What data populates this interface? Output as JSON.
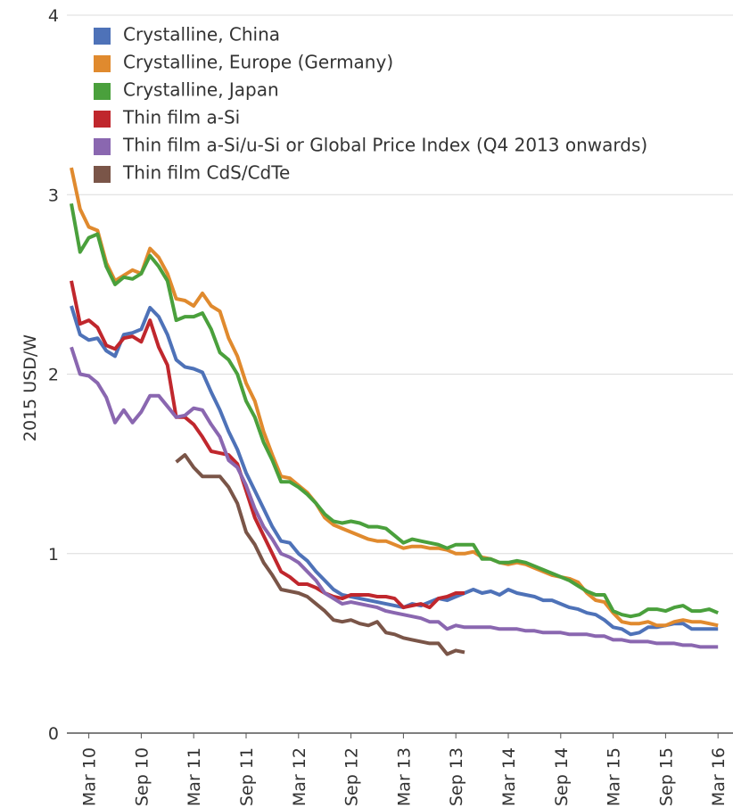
{
  "chart_data": {
    "type": "line",
    "ylabel": "2015 USD/W",
    "ylim": [
      0,
      4
    ],
    "yticks": [
      0,
      1,
      2,
      3,
      4
    ],
    "grid": true,
    "legend": "top-left",
    "categories": [
      null,
      null,
      "Mar 10",
      null,
      null,
      null,
      null,
      null,
      "Sep 10",
      null,
      null,
      null,
      null,
      null,
      "Mar 11",
      null,
      null,
      null,
      null,
      null,
      "Sep 11",
      null,
      null,
      null,
      null,
      null,
      "Mar 12",
      null,
      null,
      null,
      null,
      null,
      "Sep 12",
      null,
      null,
      null,
      null,
      null,
      "Mar 13",
      null,
      null,
      null,
      null,
      null,
      "Sep 13",
      null,
      null,
      null,
      null,
      null,
      "Mar 14",
      null,
      null,
      null,
      null,
      null,
      "Sep 14",
      null,
      null,
      null,
      null,
      null,
      "Mar 15",
      null,
      null,
      null,
      null,
      null,
      "Sep 15",
      null,
      null,
      null,
      null,
      null,
      "Mar 16"
    ],
    "series": [
      {
        "name": "Crystalline, China",
        "color": "#4e72b8",
        "values": [
          2.38,
          2.22,
          2.19,
          2.2,
          2.13,
          2.1,
          2.22,
          2.23,
          2.25,
          2.37,
          2.32,
          2.22,
          2.08,
          2.04,
          2.03,
          2.01,
          1.9,
          1.8,
          1.68,
          1.58,
          1.45,
          1.35,
          1.25,
          1.15,
          1.07,
          1.06,
          1.0,
          0.96,
          0.9,
          0.85,
          0.8,
          0.77,
          0.76,
          0.75,
          0.74,
          0.73,
          0.72,
          0.71,
          0.7,
          0.72,
          0.71,
          0.73,
          0.75,
          0.74,
          0.76,
          0.78,
          0.8,
          0.78,
          0.79,
          0.77,
          0.8,
          0.78,
          0.77,
          0.76,
          0.74,
          0.74,
          0.72,
          0.7,
          0.69,
          0.67,
          0.66,
          0.63,
          0.59,
          0.58,
          0.55,
          0.56,
          0.59,
          0.59,
          0.6,
          0.61,
          0.61,
          0.58,
          0.58,
          0.58,
          0.58
        ]
      },
      {
        "name": "Crystalline, Europe (Germany)",
        "color": "#e08a2e",
        "values": [
          3.15,
          2.92,
          2.82,
          2.8,
          2.62,
          2.52,
          2.55,
          2.58,
          2.56,
          2.7,
          2.65,
          2.56,
          2.42,
          2.41,
          2.38,
          2.45,
          2.38,
          2.35,
          2.2,
          2.1,
          1.95,
          1.85,
          1.68,
          1.55,
          1.43,
          1.42,
          1.38,
          1.34,
          1.28,
          1.2,
          1.16,
          1.14,
          1.12,
          1.1,
          1.08,
          1.07,
          1.07,
          1.05,
          1.03,
          1.04,
          1.04,
          1.03,
          1.03,
          1.02,
          1.0,
          1.0,
          1.01,
          0.98,
          0.97,
          0.95,
          0.94,
          0.95,
          0.94,
          0.92,
          0.9,
          0.88,
          0.87,
          0.86,
          0.84,
          0.78,
          0.74,
          0.73,
          0.67,
          0.62,
          0.61,
          0.61,
          0.62,
          0.6,
          0.6,
          0.62,
          0.63,
          0.62,
          0.62,
          0.61,
          0.6
        ]
      },
      {
        "name": "Crystalline, Japan",
        "color": "#4aa03c",
        "values": [
          2.95,
          2.68,
          2.76,
          2.78,
          2.6,
          2.5,
          2.54,
          2.53,
          2.56,
          2.66,
          2.6,
          2.52,
          2.3,
          2.32,
          2.32,
          2.34,
          2.25,
          2.12,
          2.08,
          2.0,
          1.85,
          1.76,
          1.62,
          1.52,
          1.4,
          1.4,
          1.37,
          1.33,
          1.28,
          1.22,
          1.18,
          1.17,
          1.18,
          1.17,
          1.15,
          1.15,
          1.14,
          1.1,
          1.06,
          1.08,
          1.07,
          1.06,
          1.05,
          1.03,
          1.05,
          1.05,
          1.05,
          0.97,
          0.97,
          0.95,
          0.95,
          0.96,
          0.95,
          0.93,
          0.91,
          0.89,
          0.87,
          0.85,
          0.82,
          0.79,
          0.77,
          0.77,
          0.68,
          0.66,
          0.65,
          0.66,
          0.69,
          0.69,
          0.68,
          0.7,
          0.71,
          0.68,
          0.68,
          0.69,
          0.67
        ]
      },
      {
        "name": "Thin film a-Si",
        "color": "#c0272d",
        "values": [
          2.52,
          2.28,
          2.3,
          2.26,
          2.16,
          2.14,
          2.2,
          2.21,
          2.18,
          2.3,
          2.15,
          2.05,
          1.76,
          1.76,
          1.72,
          1.65,
          1.57,
          1.56,
          1.55,
          1.5,
          1.35,
          1.2,
          1.1,
          1.0,
          0.9,
          0.87,
          0.83,
          0.83,
          0.81,
          0.78,
          0.76,
          0.75,
          0.77,
          0.77,
          0.77,
          0.76,
          0.76,
          0.75,
          0.7,
          0.71,
          0.72,
          0.7,
          0.75,
          0.76,
          0.78,
          0.78,
          null,
          null,
          null,
          null,
          null,
          null,
          null,
          null,
          null,
          null,
          null,
          null,
          null,
          null,
          null,
          null,
          null,
          null,
          null,
          null,
          null,
          null,
          null,
          null,
          null,
          null,
          null,
          null,
          null
        ]
      },
      {
        "name": "Thin film a-Si/u-Si or Global Price Index (Q4 2013 onwards)",
        "color": "#8a67b0",
        "values": [
          2.15,
          2.0,
          1.99,
          1.95,
          1.87,
          1.73,
          1.8,
          1.73,
          1.79,
          1.88,
          1.88,
          1.82,
          1.76,
          1.77,
          1.81,
          1.8,
          1.72,
          1.65,
          1.52,
          1.48,
          1.38,
          1.25,
          1.15,
          1.08,
          1.0,
          0.98,
          0.95,
          0.9,
          0.85,
          0.78,
          0.75,
          0.72,
          0.73,
          0.72,
          0.71,
          0.7,
          0.68,
          0.67,
          0.66,
          0.65,
          0.64,
          0.62,
          0.62,
          0.58,
          0.6,
          0.59,
          0.59,
          0.59,
          0.59,
          0.58,
          0.58,
          0.58,
          0.57,
          0.57,
          0.56,
          0.56,
          0.56,
          0.55,
          0.55,
          0.55,
          0.54,
          0.54,
          0.52,
          0.52,
          0.51,
          0.51,
          0.51,
          0.5,
          0.5,
          0.5,
          0.49,
          0.49,
          0.48,
          0.48,
          0.48
        ]
      },
      {
        "name": "Thin film CdS/CdTe",
        "color": "#7a5548",
        "values": [
          null,
          null,
          null,
          null,
          null,
          null,
          null,
          null,
          null,
          null,
          null,
          null,
          1.51,
          1.55,
          1.48,
          1.43,
          1.43,
          1.43,
          1.37,
          1.28,
          1.12,
          1.05,
          0.95,
          0.88,
          0.8,
          0.79,
          0.78,
          0.76,
          0.72,
          0.68,
          0.63,
          0.62,
          0.63,
          0.61,
          0.6,
          0.62,
          0.56,
          0.55,
          0.53,
          0.52,
          0.51,
          0.5,
          0.5,
          0.44,
          0.46,
          0.45,
          null,
          null,
          null,
          null,
          null,
          null,
          null,
          null,
          null,
          null,
          null,
          null,
          null,
          null,
          null,
          null,
          null,
          null,
          null,
          null,
          null,
          null,
          null,
          null,
          null,
          null,
          null,
          null,
          null
        ]
      }
    ]
  }
}
